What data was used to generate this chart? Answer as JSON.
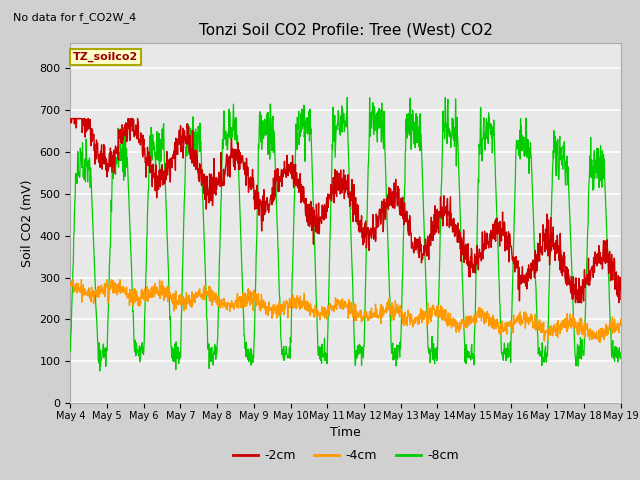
{
  "title": "Tonzi Soil CO2 Profile: Tree (West) CO2",
  "subtitle": "No data for f_CO2W_4",
  "ylabel": "Soil CO2 (mV)",
  "xlabel": "Time",
  "legend_label": "TZ_soilco2",
  "series_labels": [
    "-2cm",
    "-4cm",
    "-8cm"
  ],
  "series_colors": [
    "#cc0000",
    "#ff9900",
    "#00cc00"
  ],
  "ylim": [
    0,
    860
  ],
  "yticks": [
    0,
    100,
    200,
    300,
    400,
    500,
    600,
    700,
    800
  ],
  "x_tick_labels": [
    "May 4",
    "May 5",
    "May 6",
    "May 7",
    "May 8",
    "May 9",
    "May 10",
    "May 11",
    "May 12",
    "May 13",
    "May 14",
    "May 15",
    "May 16",
    "May 17",
    "May 18",
    "May 19"
  ],
  "fig_bg_color": "#d0d0d0",
  "plot_bg_color": "#e8e8e8",
  "grid_color": "#ffffff",
  "n_points": 1500,
  "duration_days": 15,
  "figsize": [
    6.4,
    4.8
  ],
  "dpi": 100
}
